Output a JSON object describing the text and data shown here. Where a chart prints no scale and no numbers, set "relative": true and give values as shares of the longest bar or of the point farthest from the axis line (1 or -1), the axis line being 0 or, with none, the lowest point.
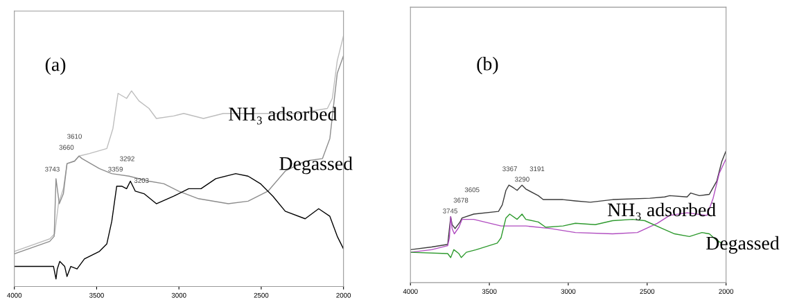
{
  "chart_data": [
    {
      "type": "line",
      "relative": true,
      "xlim": [
        4000,
        2000
      ],
      "xticks": [
        4000,
        3500,
        3000,
        2500,
        2000
      ],
      "tick_labels": "x",
      "grid": false,
      "legend": false,
      "series": [
        {
          "color": "#bdbdbd",
          "x": [
            4000,
            3785,
            3755,
            3732,
            3702,
            3680,
            3634,
            3607,
            3544,
            3438,
            3401,
            3370,
            3318,
            3288,
            3243,
            3182,
            3137,
            3032,
            2971,
            2851,
            2730,
            2580,
            2429,
            2279,
            2098,
            2068,
            2038,
            2000
          ],
          "values": [
            0.14,
            0.19,
            0.21,
            0.33,
            0.39,
            0.49,
            0.5,
            0.52,
            0.53,
            0.55,
            0.63,
            0.77,
            0.75,
            0.78,
            0.74,
            0.71,
            0.67,
            0.68,
            0.69,
            0.67,
            0.69,
            0.69,
            0.69,
            0.69,
            0.71,
            0.75,
            0.9,
            1.0
          ]
        },
        {
          "color": "#8c8c8c",
          "x": [
            4000,
            3785,
            3758,
            3747,
            3739,
            3727,
            3702,
            3680,
            3634,
            3607,
            3589,
            3483,
            3408,
            3303,
            3182,
            3092,
            3002,
            2881,
            2700,
            2580,
            2459,
            2354,
            2233,
            2128,
            2083,
            2038,
            2000
          ],
          "values": [
            0.13,
            0.18,
            0.2,
            0.43,
            0.39,
            0.33,
            0.37,
            0.49,
            0.5,
            0.52,
            0.51,
            0.47,
            0.45,
            0.44,
            0.42,
            0.41,
            0.38,
            0.35,
            0.33,
            0.34,
            0.38,
            0.46,
            0.5,
            0.51,
            0.59,
            0.85,
            0.92
          ]
        },
        {
          "color": "#000000",
          "x": [
            4000,
            3860,
            3762,
            3747,
            3739,
            3724,
            3694,
            3680,
            3657,
            3619,
            3574,
            3483,
            3438,
            3408,
            3378,
            3348,
            3318,
            3295,
            3265,
            3212,
            3137,
            3032,
            2941,
            2866,
            2776,
            2655,
            2580,
            2505,
            2429,
            2354,
            2233,
            2151,
            2083,
            2038,
            2000
          ],
          "values": [
            0.08,
            0.08,
            0.08,
            0.03,
            0.07,
            0.1,
            0.08,
            0.04,
            0.08,
            0.07,
            0.11,
            0.14,
            0.17,
            0.26,
            0.4,
            0.4,
            0.39,
            0.42,
            0.38,
            0.37,
            0.33,
            0.36,
            0.39,
            0.39,
            0.43,
            0.45,
            0.44,
            0.41,
            0.36,
            0.3,
            0.27,
            0.31,
            0.28,
            0.2,
            0.15
          ]
        }
      ],
      "annotations": [
        "(a)",
        "NH₃ adsorbed",
        "Degassed",
        "3743",
        "3660",
        "3610",
        "3359",
        "3292",
        "3203"
      ]
    },
    {
      "type": "line",
      "relative": true,
      "xlim": [
        4000,
        2000
      ],
      "xticks": [
        4000,
        3500,
        3000,
        2500,
        2000
      ],
      "tick_labels": "x",
      "grid": false,
      "legend": false,
      "series": [
        {
          "color": "#3a3a3a",
          "x": [
            4000,
            3866,
            3764,
            3745,
            3736,
            3717,
            3686,
            3673,
            3599,
            3442,
            3418,
            3395,
            3376,
            3348,
            3324,
            3293,
            3269,
            3190,
            3159,
            3033,
            2955,
            2860,
            2719,
            2483,
            2389,
            2357,
            2247,
            2224,
            2169,
            2106,
            2059,
            2027,
            2000
          ],
          "values": [
            0.25,
            0.27,
            0.29,
            0.5,
            0.44,
            0.41,
            0.46,
            0.49,
            0.52,
            0.54,
            0.59,
            0.7,
            0.74,
            0.72,
            0.7,
            0.74,
            0.71,
            0.66,
            0.63,
            0.63,
            0.62,
            0.61,
            0.63,
            0.64,
            0.65,
            0.66,
            0.65,
            0.68,
            0.66,
            0.67,
            0.77,
            0.92,
            1.0
          ]
        },
        {
          "color": "#b04cc0",
          "x": [
            4000,
            3866,
            3764,
            3753,
            3745,
            3736,
            3722,
            3693,
            3673,
            3599,
            3426,
            3269,
            3112,
            2955,
            2719,
            2562,
            2436,
            2357,
            2247,
            2121,
            2082,
            2043,
            2000
          ],
          "values": [
            0.23,
            0.25,
            0.28,
            0.34,
            0.5,
            0.41,
            0.37,
            0.42,
            0.48,
            0.48,
            0.43,
            0.43,
            0.41,
            0.38,
            0.37,
            0.38,
            0.45,
            0.51,
            0.53,
            0.51,
            0.64,
            0.83,
            0.94
          ]
        },
        {
          "color": "#2e9a2e",
          "x": [
            4000,
            3764,
            3745,
            3725,
            3693,
            3678,
            3646,
            3583,
            3450,
            3426,
            3395,
            3371,
            3324,
            3293,
            3269,
            3190,
            3143,
            3033,
            2955,
            2829,
            2719,
            2593,
            2515,
            2404,
            2326,
            2232,
            2153,
            2106,
            2059,
            2027
          ],
          "values": [
            0.23,
            0.22,
            0.19,
            0.25,
            0.22,
            0.19,
            0.23,
            0.25,
            0.3,
            0.34,
            0.49,
            0.52,
            0.48,
            0.52,
            0.48,
            0.46,
            0.42,
            0.43,
            0.45,
            0.44,
            0.47,
            0.48,
            0.47,
            0.41,
            0.37,
            0.35,
            0.38,
            0.37,
            0.32,
            0.3
          ]
        }
      ],
      "annotations": [
        "(b)",
        "NH₃ adsorbed",
        "Degassed",
        "3745",
        "3678",
        "3605",
        "3367",
        "3290",
        "3191"
      ]
    }
  ]
}
